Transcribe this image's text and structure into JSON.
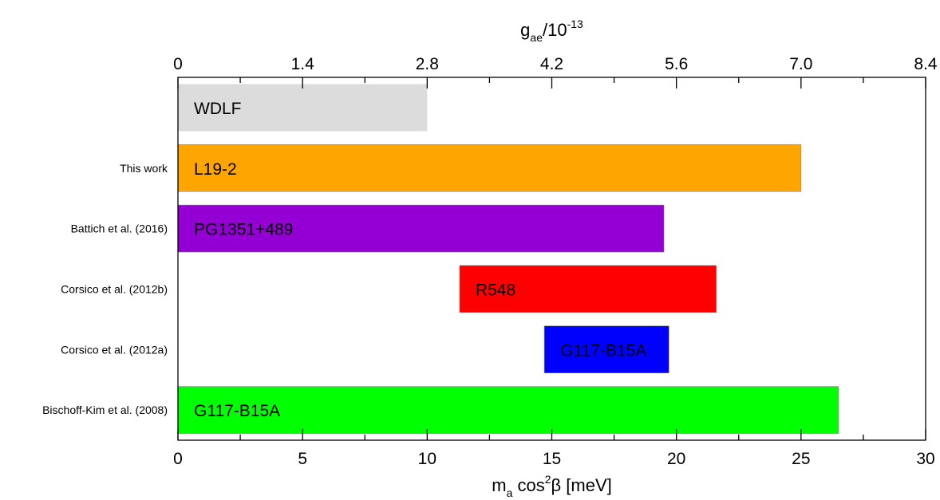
{
  "chart_data": {
    "type": "bar",
    "orientation": "horizontal",
    "xlabel": {
      "main": "m",
      "sub": "a",
      "mid": " cos",
      "sup": "2",
      "tail": "β [meV]"
    },
    "x2label": {
      "main": "g",
      "sub": "ae",
      "mid": "/10",
      "sup": "-13"
    },
    "xlim": [
      0,
      30
    ],
    "x_ticks": [
      "0",
      "5",
      "10",
      "15",
      "20",
      "25",
      "30"
    ],
    "x_tick_values": [
      0,
      5,
      10,
      15,
      20,
      25,
      30
    ],
    "x2_ticks": [
      "0",
      "1.4",
      "2.8",
      "4.2",
      "5.6",
      "7.0",
      "8.4"
    ],
    "x2_tick_values": [
      0,
      1.4,
      2.8,
      4.2,
      5.6,
      7.0,
      8.4
    ],
    "x2_per_x": 0.28,
    "grid": false,
    "bars": [
      {
        "category": "",
        "label": "WDLF",
        "start": 0,
        "end": 10,
        "color": "#dcdcdc"
      },
      {
        "category": "This work",
        "label": "L19-2",
        "start": 0,
        "end": 25,
        "color": "#ffa500"
      },
      {
        "category": "Battich et al. (2016)",
        "label": "PG1351+489",
        "start": 0,
        "end": 19.5,
        "color": "#9400d3"
      },
      {
        "category": "Corsico et al. (2012b)",
        "label": "R548",
        "start": 11.3,
        "end": 21.6,
        "color": "#ff0000"
      },
      {
        "category": "Corsico et al. (2012a)",
        "label": "G117-B15A",
        "start": 14.7,
        "end": 19.7,
        "color": "#0000ff"
      },
      {
        "category": "Bischoff-Kim et al. (2008)",
        "label": "G117-B15A",
        "start": 0,
        "end": 26.5,
        "color": "#00ff00"
      }
    ]
  }
}
